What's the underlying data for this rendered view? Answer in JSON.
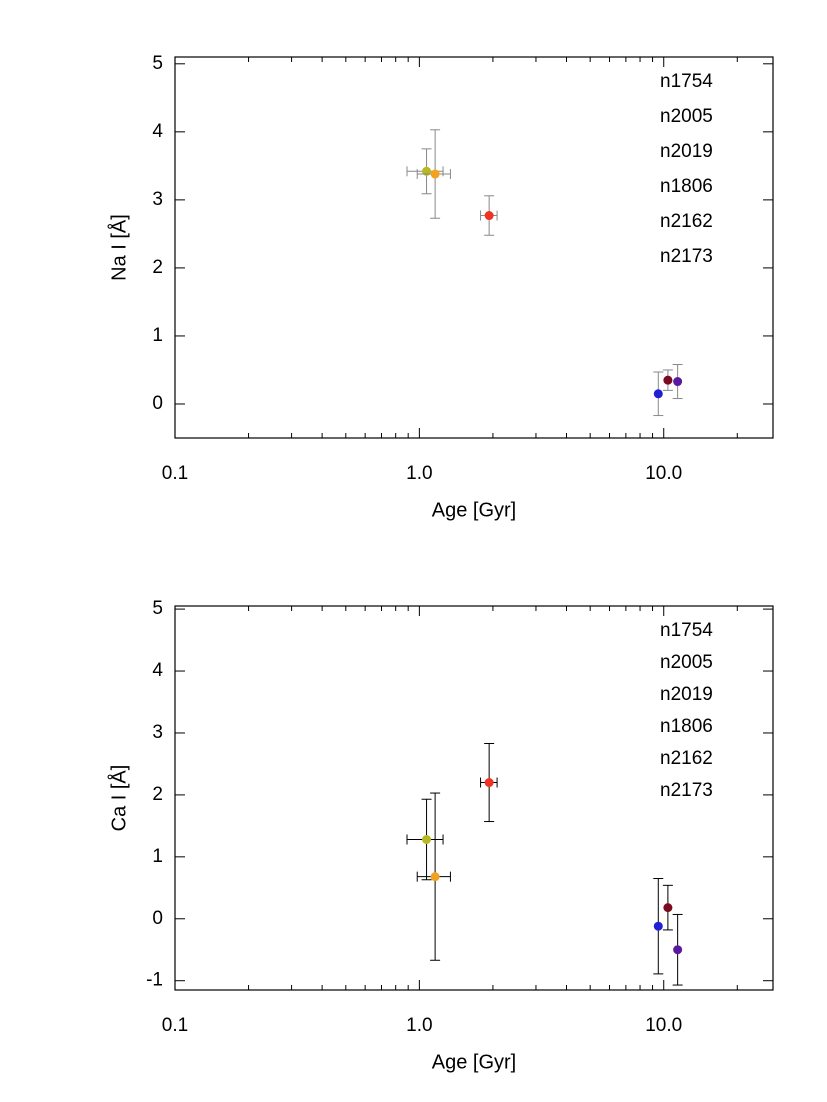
{
  "chart_data": [
    {
      "type": "scatter",
      "xlabel": "Age [Gyr]",
      "ylabel": "Na I [Å]",
      "xlog": true,
      "xlim": [
        0.1,
        28
      ],
      "ylim": [
        -0.5,
        5.1
      ],
      "xticks": [
        0.1,
        {
          "value": 1,
          "label": "1.0"
        },
        {
          "value": 10,
          "label": "10.0"
        }
      ],
      "xminorticks": [
        0.2,
        0.3,
        0.4,
        0.5,
        0.6,
        0.7,
        0.8,
        0.9,
        2,
        3,
        4,
        5,
        6,
        7,
        8,
        9,
        20
      ],
      "yticks": [
        0,
        1,
        2,
        3,
        4,
        5
      ],
      "errorbar_color": "#888888",
      "series": [
        {
          "name": "n1754",
          "color": "#1f1fd6",
          "x": [
            9.5
          ],
          "values": [
            0.15
          ],
          "yerr": [
            0.32
          ]
        },
        {
          "name": "n2005",
          "color": "#7a0a1e",
          "x": [
            10.4
          ],
          "values": [
            0.35
          ],
          "yerr": [
            0.15
          ]
        },
        {
          "name": "n2019",
          "color": "#5a1aa0",
          "x": [
            11.4
          ],
          "values": [
            0.33
          ],
          "yerr": [
            0.25
          ]
        },
        {
          "name": "n1806",
          "color": "#b8b820",
          "x": [
            1.07
          ],
          "values": [
            3.42
          ],
          "xerr": [
            0.18
          ],
          "yerr": [
            0.33
          ]
        },
        {
          "name": "n2162",
          "color": "#f2a21e",
          "x": [
            1.16
          ],
          "values": [
            3.38
          ],
          "xerr": [
            0.18
          ],
          "yerr": [
            0.65
          ]
        },
        {
          "name": "n2173",
          "color": "#f03222",
          "x": [
            1.93
          ],
          "values": [
            2.77
          ],
          "xerr": [
            0.15
          ],
          "yerr": [
            0.29
          ]
        }
      ]
    },
    {
      "type": "scatter",
      "xlabel": "Age [Gyr]",
      "ylabel": "Ca I [Å]",
      "xlog": true,
      "xlim": [
        0.1,
        28
      ],
      "ylim": [
        -1.15,
        5.05
      ],
      "xticks": [
        0.1,
        {
          "value": 1,
          "label": "1.0"
        },
        {
          "value": 10,
          "label": "10.0"
        }
      ],
      "xminorticks": [
        0.2,
        0.3,
        0.4,
        0.5,
        0.6,
        0.7,
        0.8,
        0.9,
        2,
        3,
        4,
        5,
        6,
        7,
        8,
        9,
        20
      ],
      "yticks": [
        -1,
        0,
        1,
        2,
        3,
        4,
        5
      ],
      "errorbar_color": "#000000",
      "series": [
        {
          "name": "n1754",
          "color": "#1f1fd6",
          "x": [
            9.5
          ],
          "values": [
            -0.12
          ],
          "yerr": [
            0.77
          ]
        },
        {
          "name": "n2005",
          "color": "#7a0a1e",
          "x": [
            10.4
          ],
          "values": [
            0.18
          ],
          "yerr": [
            0.36
          ]
        },
        {
          "name": "n2019",
          "color": "#5a1aa0",
          "x": [
            11.4
          ],
          "values": [
            -0.5
          ],
          "yerr": [
            0.57
          ]
        },
        {
          "name": "n1806",
          "color": "#b8b820",
          "x": [
            1.07
          ],
          "values": [
            1.28
          ],
          "xerr": [
            0.18
          ],
          "yerr": [
            0.65
          ]
        },
        {
          "name": "n2162",
          "color": "#f2a21e",
          "x": [
            1.16
          ],
          "values": [
            0.68
          ],
          "xerr": [
            0.18
          ],
          "yerr": [
            1.35
          ]
        },
        {
          "name": "n2173",
          "color": "#f03222",
          "x": [
            1.93
          ],
          "values": [
            2.2
          ],
          "xerr": [
            0.15
          ],
          "yerr": [
            0.63
          ]
        }
      ]
    }
  ]
}
